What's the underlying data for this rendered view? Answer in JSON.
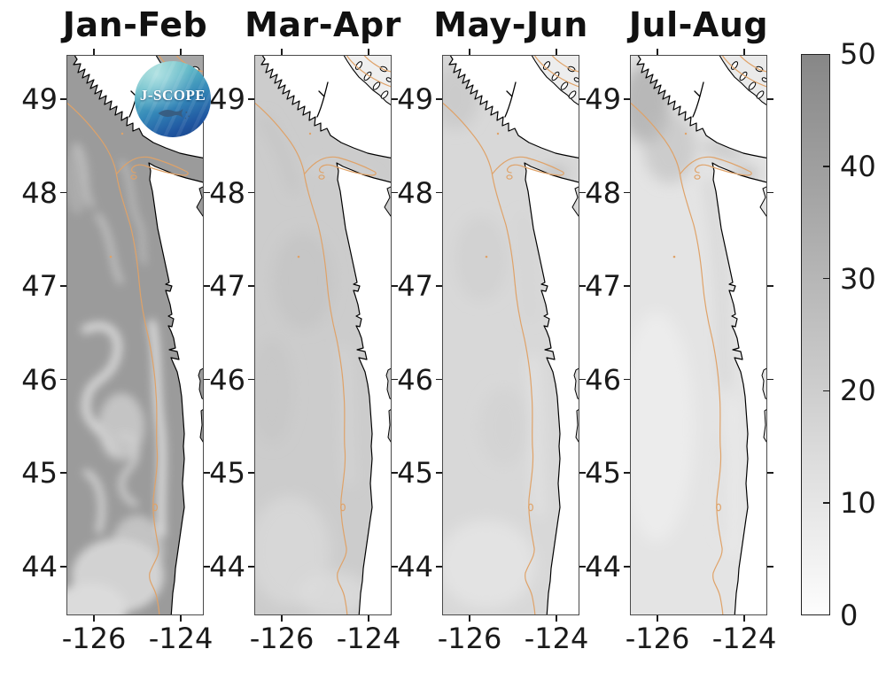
{
  "figure": {
    "panels": [
      {
        "title": "Jan-Feb"
      },
      {
        "title": "Mar-Apr"
      },
      {
        "title": "May-Jun"
      },
      {
        "title": "Jul-Aug"
      }
    ],
    "y_axis": {
      "tick_labels": [
        "49",
        "48",
        "47",
        "46",
        "45",
        "44"
      ]
    },
    "x_axis": {
      "tick_labels": [
        "-126",
        "-124"
      ]
    },
    "colorbar": {
      "tick_labels": [
        "50",
        "40",
        "30",
        "20",
        "10",
        "0"
      ]
    },
    "logo": {
      "text": "J-SCOPE"
    }
  },
  "colors": {
    "contour": "#dfa268",
    "coastline": "#000000",
    "land": "#ffffff",
    "ocean_by_panel": [
      "#9b9b9b",
      "#cccccc",
      "#d8d8d8",
      "#e4e4e4"
    ],
    "colorbar_top": "#878787",
    "colorbar_bottom": "#ffffff"
  },
  "chart_data": {
    "type": "heatmap",
    "layout": "four geographic map panels (bi-monthly composites) sharing one vertical grayscale colorbar on the right; J-SCOPE logo badge overlays the first panel",
    "panel_titles": [
      "Jan-Feb",
      "Mar-Apr",
      "May-Jun",
      "Jul-Aug"
    ],
    "x": {
      "ticks": [
        -126,
        -124
      ],
      "range_est": [
        -126.6,
        -123.5
      ],
      "unit": "degrees longitude"
    },
    "y": {
      "ticks": [
        49,
        48,
        47,
        46,
        45,
        44
      ],
      "range_est": [
        43.5,
        49.5
      ],
      "unit": "degrees latitude"
    },
    "colorbar": {
      "ticks": [
        0,
        10,
        20,
        30,
        40,
        50
      ],
      "range": [
        0,
        50
      ],
      "colormap": "white (0) to dark gray (50)"
    },
    "field_value_estimates_0to50": [
      {
        "panel": "Jan-Feb",
        "offshore": 38,
        "inner_shelf": 20,
        "note": "darkest panel, strong light eddy filaments south of 47N"
      },
      {
        "panel": "Mar-Apr",
        "offshore": 20,
        "inner_shelf": 12
      },
      {
        "panel": "May-Jun",
        "offshore": 15,
        "inner_shelf": 8
      },
      {
        "panel": "Jul-Aug",
        "offshore": 8,
        "inner_shelf": 12,
        "note": "lightest panel, darker patch at Juan de Fuca entrance"
      }
    ],
    "overlays": [
      "black coastline (Vancouver Island, Strait of Juan de Fuca, Washington/Oregon coast)",
      "tan shelf-break isobath contour with canyon hairpin in the strait",
      "J-SCOPE circular logo in first panel"
    ]
  }
}
